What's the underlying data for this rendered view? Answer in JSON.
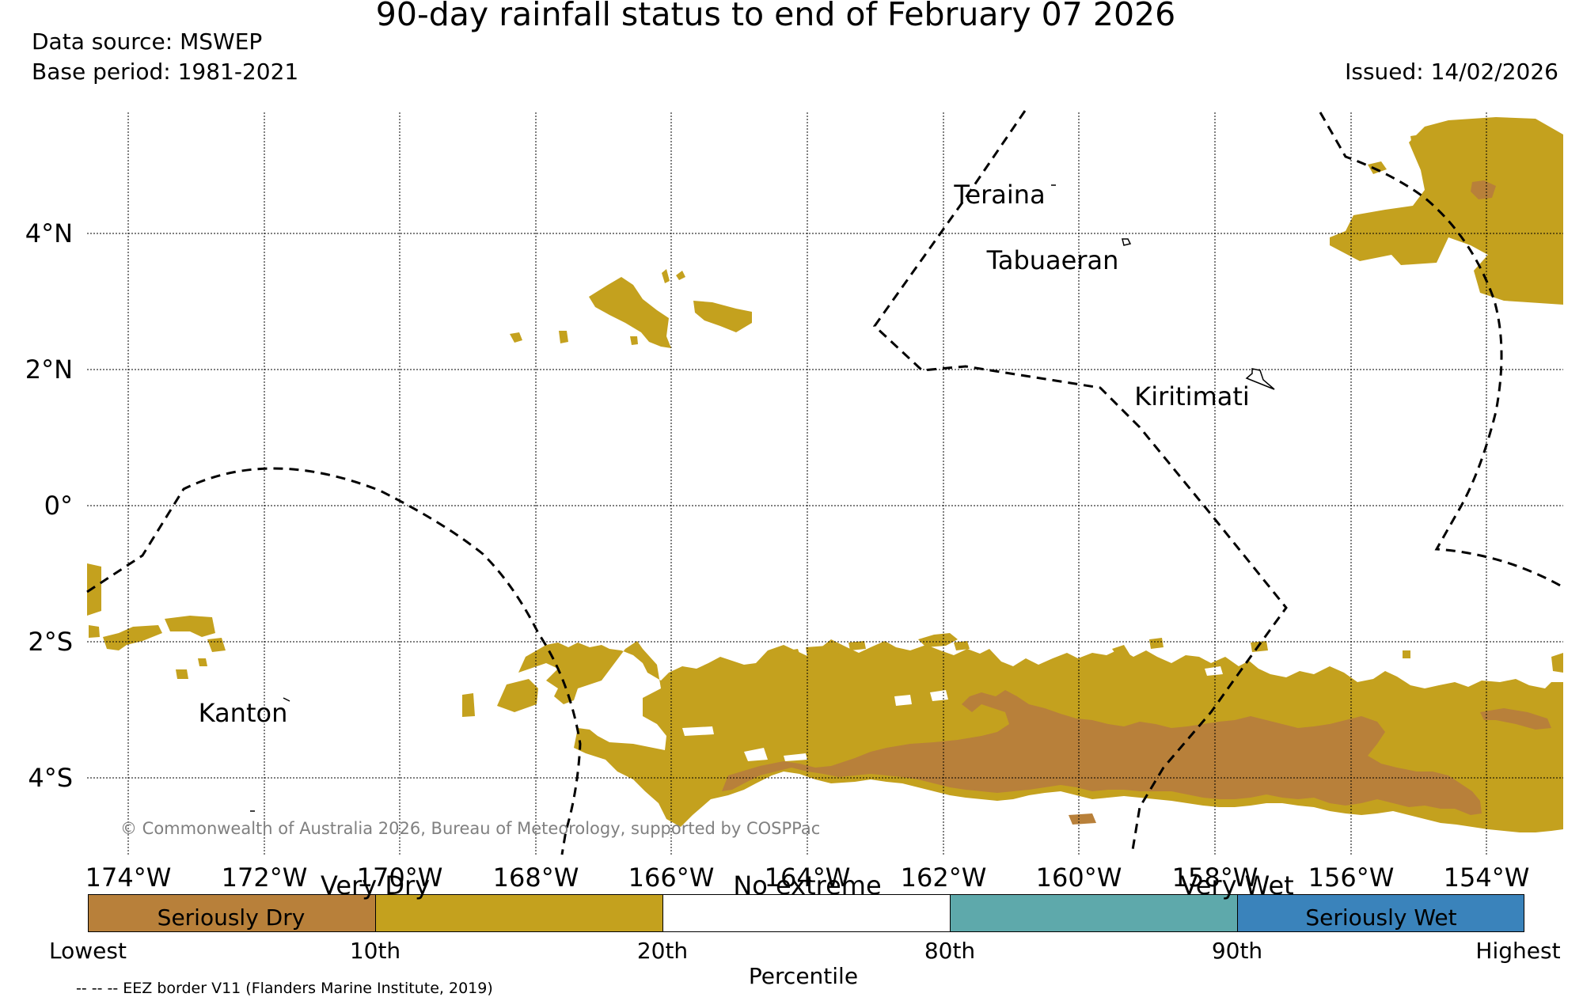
{
  "title": "90-day rainfall status to end of February 07 2026",
  "data_source": "Data source: MSWEP",
  "base_period": "Base period: 1981-2021",
  "issued": "Issued: 14/02/2026",
  "copyright": "© Commonwealth of Australia 2026, Bureau of Meteorology, supported by COSPPac",
  "map": {
    "lon_range": [
      -174.6,
      -152.9
    ],
    "lat_range": [
      -5.1,
      5.8
    ],
    "lon_ticks": [
      "174°W",
      "172°W",
      "170°W",
      "168°W",
      "166°W",
      "164°W",
      "162°W",
      "160°W",
      "158°W",
      "156°W",
      "154°W"
    ],
    "lat_ticks": [
      "4°N",
      "2°N",
      "0°",
      "2°S",
      "4°S"
    ],
    "place_labels": [
      "Teraina",
      "Tabuaeran",
      "Kiritimati",
      "Kanton"
    ]
  },
  "colorbar": {
    "headings": [
      "Very Dry",
      "No extreme",
      "Very Wet"
    ],
    "segments": [
      {
        "label": "Seriously Dry",
        "color": "#b8803a"
      },
      {
        "label": "",
        "color": "#c4a11e"
      },
      {
        "label": "",
        "color": "#ffffff"
      },
      {
        "label": "",
        "color": "#5ea9ab"
      },
      {
        "label": "Seriously Wet",
        "color": "#3a83bb"
      }
    ],
    "ticks": [
      "Lowest",
      "10th",
      "20th",
      "80th",
      "90th",
      "Highest"
    ],
    "axis_label": "Percentile"
  },
  "legend_note": "-- -- -- EEZ border V11 (Flanders Marine Institute, 2019)"
}
